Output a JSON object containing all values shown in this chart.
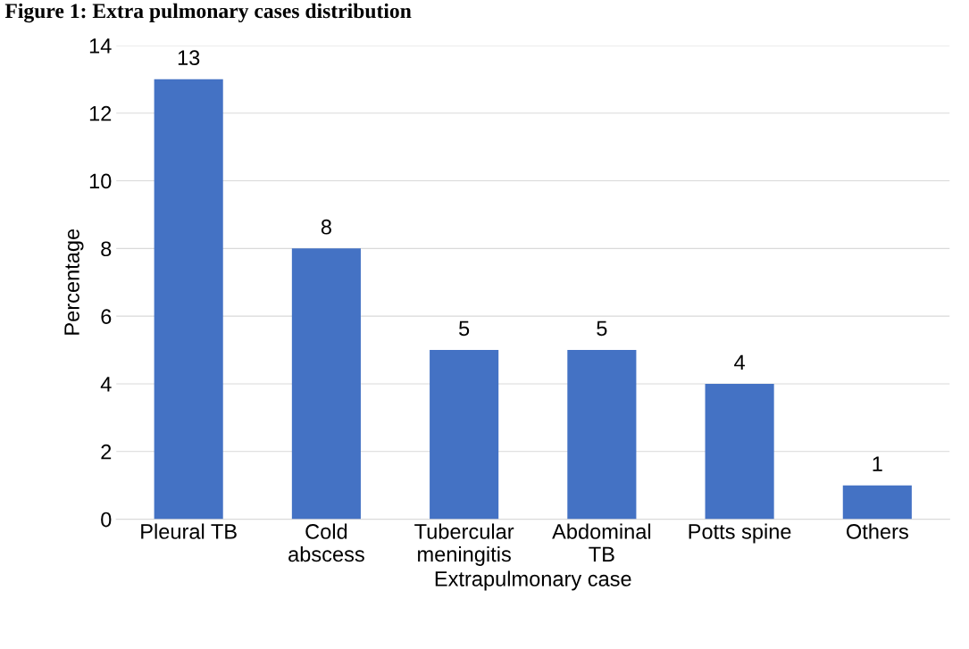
{
  "chart_data": {
    "type": "bar",
    "title": "Figure 1: Extra pulmonary cases distribution",
    "xlabel": "Extrapulmonary case",
    "ylabel": "Percentage",
    "categories": [
      "Pleural TB",
      "Cold\nabscess",
      "Tubercular\nmeningitis",
      "Abdominal\nTB",
      "Potts spine",
      "Others"
    ],
    "values": [
      13,
      8,
      5,
      5,
      4,
      1
    ],
    "color": "#4472c4",
    "ylim": [
      0,
      14
    ],
    "yticks": [
      0,
      2,
      4,
      6,
      8,
      10,
      12,
      14
    ],
    "grid": "y",
    "data_labels": true
  }
}
